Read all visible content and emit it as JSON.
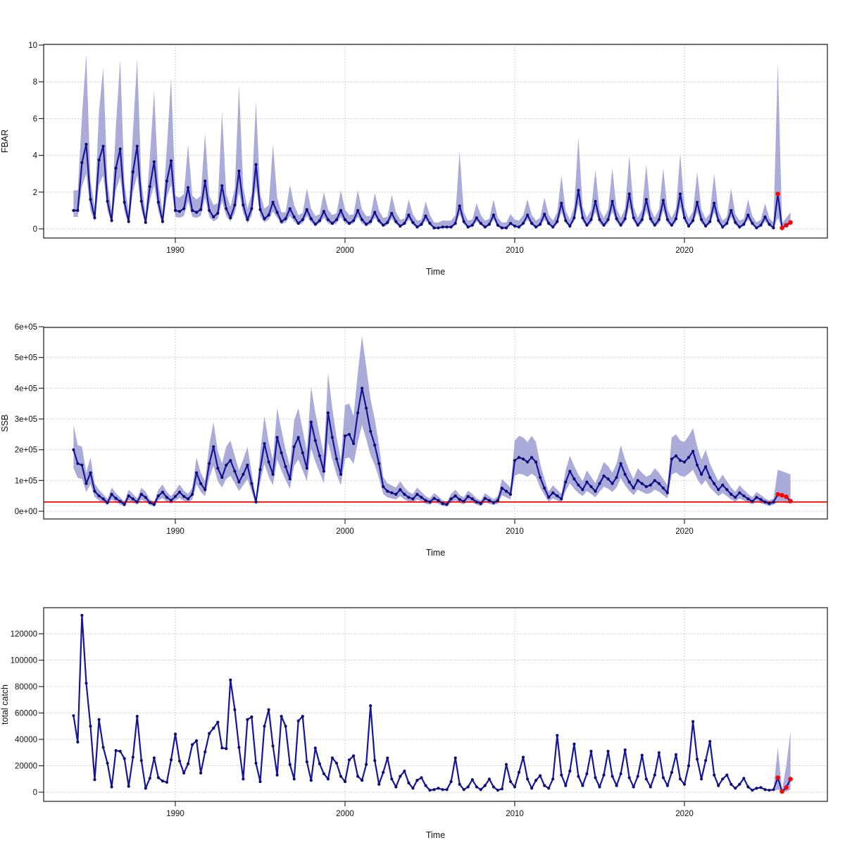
{
  "colors": {
    "line": "#16169a",
    "marker": "#0b0b72",
    "band": "#a2a2d5",
    "forecast_point": "#ff0000",
    "ref_line": "#ff0000",
    "grid": "#bfbfbf",
    "box": "#2b2b2b",
    "tick": "#2b2b2b",
    "text": "#111111",
    "background": "#ffffff"
  },
  "x_axis": {
    "label": "Time",
    "ticks": [
      1990,
      2000,
      2010,
      2020
    ],
    "tick_labels": [
      "1990",
      "2000",
      "2010",
      "2020"
    ]
  },
  "chart_data": [
    {
      "type": "line",
      "id": "fbar",
      "ylabel": "FBAR",
      "xlabel": "Time",
      "unit": 1,
      "ylim": [
        0,
        10
      ],
      "yticks": [
        0,
        2,
        4,
        6,
        8,
        10
      ],
      "ytick_labels": [
        "0",
        "2",
        "4",
        "6",
        "8",
        "10"
      ],
      "x_start": 1984.0,
      "x_step": 0.25,
      "forecast_points": 4,
      "ref_line": null,
      "values": [
        1.0,
        1.0,
        3.6,
        4.6,
        1.6,
        0.6,
        3.75,
        4.5,
        1.5,
        0.45,
        3.3,
        4.35,
        1.45,
        0.4,
        3.1,
        4.5,
        1.5,
        0.35,
        2.3,
        3.65,
        1.45,
        0.4,
        2.6,
        3.7,
        1.0,
        0.95,
        1.1,
        2.25,
        1.0,
        0.9,
        1.05,
        2.6,
        1.0,
        0.65,
        0.85,
        2.35,
        1.1,
        0.6,
        1.3,
        3.15,
        1.3,
        0.5,
        1.1,
        3.5,
        1.05,
        0.55,
        0.75,
        1.45,
        0.9,
        0.4,
        0.55,
        1.1,
        0.65,
        0.3,
        0.5,
        1.05,
        0.55,
        0.25,
        0.45,
        0.95,
        0.5,
        0.3,
        0.5,
        1.0,
        0.5,
        0.3,
        0.45,
        1.0,
        0.5,
        0.25,
        0.4,
        0.9,
        0.45,
        0.2,
        0.35,
        0.85,
        0.4,
        0.15,
        0.3,
        0.75,
        0.35,
        0.1,
        0.25,
        0.7,
        0.3,
        0.05,
        0.05,
        0.1,
        0.1,
        0.1,
        0.3,
        1.25,
        0.4,
        0.1,
        0.2,
        0.6,
        0.3,
        0.1,
        0.25,
        0.75,
        0.2,
        0.05,
        0.05,
        0.3,
        0.15,
        0.1,
        0.3,
        0.75,
        0.3,
        0.1,
        0.25,
        0.8,
        0.3,
        0.1,
        0.4,
        1.4,
        0.45,
        0.15,
        0.6,
        2.1,
        0.6,
        0.2,
        0.5,
        1.5,
        0.5,
        0.2,
        0.5,
        1.5,
        0.55,
        0.2,
        0.55,
        1.9,
        0.6,
        0.2,
        0.5,
        1.6,
        0.55,
        0.2,
        0.5,
        1.55,
        0.5,
        0.2,
        0.55,
        1.9,
        0.6,
        0.15,
        0.45,
        1.45,
        0.5,
        0.15,
        0.4,
        1.4,
        0.45,
        0.1,
        0.3,
        1.0,
        0.35,
        0.1,
        0.25,
        0.75,
        0.3,
        0.05,
        0.2,
        0.65,
        0.25,
        0.05,
        1.9,
        0.05,
        0.2,
        0.35
      ],
      "band_hi": [
        2.1,
        2.1,
        6.1,
        9.5,
        2.6,
        1.2,
        6.4,
        8.75,
        2.5,
        1.0,
        5.6,
        9.2,
        2.5,
        0.9,
        5.3,
        9.25,
        2.6,
        0.8,
        3.9,
        7.5,
        2.5,
        0.9,
        4.4,
        8.2,
        1.8,
        1.7,
        1.9,
        4.6,
        1.8,
        1.6,
        1.8,
        5.2,
        1.8,
        1.3,
        1.4,
        6.4,
        1.9,
        1.2,
        2.2,
        7.8,
        2.3,
        1.1,
        1.9,
        6.9,
        1.9,
        1.1,
        1.3,
        4.6,
        1.7,
        0.9,
        0.9,
        2.4,
        1.3,
        0.75,
        0.85,
        2.2,
        1.1,
        0.7,
        0.8,
        2.0,
        1.05,
        0.75,
        0.85,
        2.1,
        1.05,
        0.75,
        0.8,
        2.1,
        1.05,
        0.7,
        0.7,
        1.95,
        1.0,
        0.6,
        0.65,
        1.85,
        0.9,
        0.5,
        0.55,
        1.6,
        0.8,
        0.45,
        0.5,
        1.5,
        0.75,
        0.35,
        0.35,
        0.45,
        0.45,
        0.45,
        0.75,
        4.2,
        0.9,
        0.45,
        0.5,
        1.4,
        0.75,
        0.45,
        0.55,
        1.6,
        0.6,
        0.35,
        0.35,
        0.8,
        0.5,
        0.45,
        0.75,
        1.6,
        0.75,
        0.45,
        0.6,
        1.7,
        0.75,
        0.45,
        0.9,
        2.9,
        1.0,
        0.5,
        1.2,
        5.0,
        1.2,
        0.6,
        1.05,
        3.2,
        1.05,
        0.6,
        1.05,
        3.3,
        1.1,
        0.6,
        1.1,
        4.0,
        1.2,
        0.6,
        1.05,
        3.5,
        1.1,
        0.6,
        1.05,
        3.3,
        1.05,
        0.6,
        1.1,
        4.1,
        1.2,
        0.55,
        0.95,
        3.1,
        1.05,
        0.55,
        0.85,
        3.0,
        1.0,
        0.45,
        0.65,
        2.2,
        0.8,
        0.45,
        0.55,
        1.6,
        0.7,
        0.35,
        0.5,
        1.4,
        0.6,
        0.35,
        9.1,
        0.3,
        0.6,
        0.9
      ],
      "band_lo": [
        0.65,
        0.65,
        2.3,
        3.0,
        1.0,
        0.4,
        2.4,
        2.9,
        1.0,
        0.3,
        2.1,
        2.8,
        0.95,
        0.25,
        2.0,
        2.9,
        1.0,
        0.25,
        1.5,
        2.4,
        0.95,
        0.25,
        1.7,
        2.4,
        0.65,
        0.6,
        0.7,
        1.5,
        0.65,
        0.6,
        0.7,
        1.7,
        0.65,
        0.4,
        0.55,
        1.5,
        0.7,
        0.4,
        0.85,
        2.0,
        0.85,
        0.3,
        0.7,
        2.3,
        0.7,
        0.35,
        0.5,
        0.95,
        0.6,
        0.25,
        0.35,
        0.7,
        0.4,
        0.2,
        0.3,
        0.7,
        0.35,
        0.15,
        0.3,
        0.6,
        0.3,
        0.2,
        0.3,
        0.65,
        0.3,
        0.2,
        0.3,
        0.65,
        0.3,
        0.15,
        0.25,
        0.6,
        0.3,
        0.1,
        0.2,
        0.55,
        0.25,
        0.1,
        0.2,
        0.5,
        0.2,
        0.05,
        0.15,
        0.45,
        0.2,
        0.02,
        0.02,
        0.05,
        0.05,
        0.05,
        0.2,
        0.8,
        0.25,
        0.05,
        0.1,
        0.4,
        0.2,
        0.05,
        0.15,
        0.5,
        0.1,
        0.02,
        0.02,
        0.2,
        0.1,
        0.05,
        0.2,
        0.5,
        0.2,
        0.05,
        0.15,
        0.5,
        0.2,
        0.05,
        0.25,
        0.9,
        0.3,
        0.1,
        0.4,
        1.35,
        0.4,
        0.1,
        0.3,
        0.95,
        0.3,
        0.1,
        0.3,
        0.95,
        0.35,
        0.1,
        0.35,
        1.2,
        0.4,
        0.1,
        0.3,
        1.0,
        0.35,
        0.1,
        0.3,
        1.0,
        0.3,
        0.1,
        0.35,
        1.2,
        0.4,
        0.1,
        0.3,
        0.9,
        0.3,
        0.1,
        0.25,
        0.9,
        0.3,
        0.05,
        0.2,
        0.65,
        0.2,
        0.05,
        0.15,
        0.5,
        0.2,
        0.02,
        0.1,
        0.4,
        0.15,
        0.02,
        0.6,
        0.02,
        0.1,
        0.2
      ]
    },
    {
      "type": "line",
      "id": "ssb",
      "ylabel": "SSB",
      "xlabel": "Time",
      "unit": 1000,
      "ylim": [
        0,
        600000
      ],
      "yticks": [
        0,
        100000,
        200000,
        300000,
        400000,
        500000,
        600000
      ],
      "ytick_labels": [
        "0e+00",
        "1e+05",
        "2e+05",
        "3e+05",
        "4e+05",
        "5e+05",
        "6e+05"
      ],
      "x_start": 1984.0,
      "x_step": 0.25,
      "forecast_points": 4,
      "ref_line": 30000,
      "values": [
        200,
        155,
        150,
        90,
        125,
        65,
        50,
        40,
        28,
        55,
        42,
        32,
        22,
        50,
        40,
        30,
        55,
        45,
        28,
        22,
        50,
        62,
        45,
        35,
        48,
        62,
        48,
        40,
        55,
        125,
        90,
        70,
        155,
        210,
        140,
        110,
        150,
        165,
        130,
        95,
        120,
        150,
        90,
        30,
        135,
        220,
        160,
        120,
        240,
        190,
        145,
        105,
        210,
        240,
        190,
        140,
        290,
        230,
        180,
        130,
        320,
        240,
        170,
        120,
        245,
        250,
        220,
        320,
        400,
        335,
        260,
        215,
        155,
        80,
        65,
        60,
        55,
        70,
        55,
        45,
        40,
        55,
        45,
        35,
        30,
        42,
        35,
        25,
        22,
        40,
        50,
        38,
        32,
        48,
        40,
        30,
        25,
        42,
        35,
        28,
        35,
        75,
        65,
        55,
        165,
        175,
        170,
        160,
        175,
        160,
        110,
        75,
        45,
        60,
        50,
        40,
        95,
        130,
        105,
        85,
        70,
        95,
        80,
        65,
        90,
        115,
        105,
        90,
        110,
        155,
        120,
        95,
        75,
        100,
        90,
        80,
        85,
        100,
        90,
        75,
        60,
        170,
        180,
        165,
        160,
        175,
        195,
        150,
        120,
        145,
        110,
        90,
        70,
        85,
        70,
        55,
        45,
        60,
        50,
        40,
        32,
        45,
        38,
        30,
        25,
        30,
        55,
        52,
        47,
        33
      ],
      "band_hi": [
        280,
        215,
        210,
        125,
        175,
        90,
        70,
        56,
        40,
        77,
        59,
        45,
        31,
        70,
        56,
        42,
        77,
        63,
        39,
        31,
        70,
        87,
        63,
        49,
        67,
        87,
        67,
        56,
        77,
        175,
        125,
        98,
        215,
        290,
        195,
        155,
        210,
        230,
        180,
        133,
        168,
        210,
        125,
        42,
        190,
        310,
        225,
        168,
        335,
        265,
        200,
        147,
        295,
        335,
        265,
        196,
        405,
        320,
        250,
        182,
        450,
        335,
        240,
        168,
        345,
        350,
        310,
        450,
        570,
        470,
        365,
        300,
        215,
        112,
        91,
        84,
        77,
        98,
        77,
        63,
        56,
        77,
        63,
        49,
        42,
        59,
        49,
        35,
        31,
        56,
        70,
        53,
        45,
        67,
        56,
        42,
        35,
        59,
        49,
        39,
        49,
        105,
        91,
        77,
        230,
        245,
        240,
        225,
        245,
        225,
        155,
        105,
        63,
        84,
        70,
        56,
        133,
        180,
        147,
        119,
        98,
        133,
        112,
        91,
        125,
        160,
        147,
        125,
        155,
        215,
        168,
        133,
        105,
        140,
        125,
        112,
        119,
        140,
        125,
        105,
        84,
        240,
        250,
        230,
        225,
        245,
        270,
        210,
        168,
        200,
        155,
        125,
        98,
        119,
        98,
        77,
        63,
        84,
        70,
        56,
        45,
        63,
        53,
        42,
        35,
        42,
        135,
        130,
        125,
        120
      ],
      "band_lo": [
        140,
        108,
        105,
        63,
        88,
        46,
        35,
        28,
        20,
        38,
        29,
        22,
        15,
        35,
        28,
        21,
        38,
        31,
        20,
        15,
        35,
        43,
        31,
        24,
        34,
        43,
        34,
        28,
        38,
        88,
        63,
        49,
        108,
        147,
        98,
        77,
        105,
        115,
        91,
        66,
        84,
        105,
        63,
        21,
        94,
        154,
        112,
        84,
        168,
        133,
        101,
        73,
        147,
        168,
        133,
        98,
        203,
        161,
        126,
        91,
        224,
        168,
        119,
        84,
        171,
        175,
        154,
        224,
        280,
        234,
        182,
        150,
        108,
        56,
        45,
        42,
        38,
        49,
        38,
        31,
        28,
        38,
        31,
        24,
        21,
        29,
        24,
        17,
        15,
        28,
        35,
        27,
        22,
        34,
        28,
        21,
        17,
        29,
        24,
        20,
        24,
        52,
        45,
        38,
        115,
        122,
        119,
        112,
        122,
        112,
        77,
        52,
        31,
        42,
        35,
        28,
        66,
        91,
        73,
        59,
        49,
        66,
        56,
        45,
        63,
        80,
        73,
        63,
        77,
        108,
        84,
        66,
        52,
        70,
        63,
        56,
        59,
        70,
        63,
        52,
        42,
        119,
        126,
        115,
        112,
        122,
        135,
        105,
        84,
        101,
        77,
        63,
        49,
        59,
        49,
        38,
        31,
        42,
        35,
        28,
        22,
        31,
        26,
        21,
        17,
        21,
        30,
        28,
        27,
        25
      ]
    },
    {
      "type": "line",
      "id": "total-catch",
      "ylabel": "total catch",
      "xlabel": "Time",
      "unit": 1000,
      "ylim": [
        0,
        134000
      ],
      "yticks": [
        0,
        20000,
        40000,
        60000,
        80000,
        100000,
        120000
      ],
      "ytick_labels": [
        "0",
        "20000",
        "40000",
        "60000",
        "80000",
        "100000",
        "120000"
      ],
      "x_start": 1984.0,
      "x_step": 0.25,
      "forecast_points": 4,
      "ref_line": null,
      "values": [
        58,
        38,
        134,
        82.5,
        50,
        9.5,
        55,
        34,
        22,
        4,
        31.5,
        31,
        25.5,
        4.5,
        26.5,
        57.5,
        24,
        3,
        10.5,
        26,
        11,
        8.5,
        7.5,
        24.5,
        44,
        23.5,
        14.5,
        21.5,
        36,
        39,
        14.5,
        30.5,
        44.5,
        48.5,
        53,
        33.5,
        33,
        85,
        62.5,
        34,
        10,
        55,
        57,
        22,
        8,
        50,
        62.5,
        35,
        13,
        57.5,
        50,
        21,
        10,
        54,
        57.5,
        23,
        9,
        33.5,
        21.5,
        14,
        10,
        26,
        22,
        12,
        8,
        24.5,
        27.5,
        12,
        9,
        21,
        65.5,
        24,
        6,
        15,
        26,
        10,
        4,
        12,
        16,
        7,
        3,
        9,
        11,
        5,
        1.5,
        2,
        3,
        2,
        2,
        8,
        26,
        6,
        2,
        4,
        9.5,
        4,
        2,
        5,
        10,
        4,
        1.5,
        2.5,
        21,
        8,
        4,
        15,
        26.5,
        10,
        3,
        9,
        12.5,
        5,
        3,
        10,
        43,
        13,
        5,
        16,
        36.5,
        12,
        5,
        14,
        31,
        11,
        4,
        13,
        31,
        12,
        5,
        14,
        32,
        11,
        4,
        12,
        28,
        10,
        4,
        13,
        30,
        11,
        5,
        15,
        28.5,
        10,
        6,
        20,
        53.5,
        25,
        10,
        24,
        38.5,
        13,
        5,
        10,
        13,
        6,
        3,
        6,
        10.5,
        4,
        1.5,
        3,
        3.5,
        2,
        1.5,
        2,
        11,
        0.5,
        3.5,
        10
      ],
      "forecast_band": {
        "x": [
          2025.25,
          2025.5,
          2025.75,
          2026.0,
          2026.25
        ],
        "hi": [
          2,
          34,
          1.5,
          20,
          46
        ],
        "lo": [
          1,
          2,
          0,
          0.5,
          2
        ]
      }
    }
  ]
}
